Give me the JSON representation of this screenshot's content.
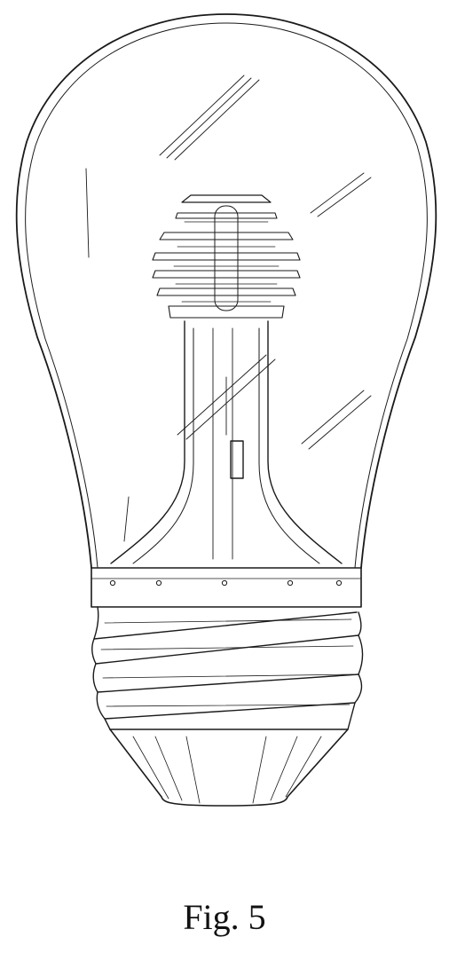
{
  "figure": {
    "caption": "Fig. 5"
  },
  "style": {
    "line_color": "#1a1a1a",
    "background": "#ffffff"
  }
}
